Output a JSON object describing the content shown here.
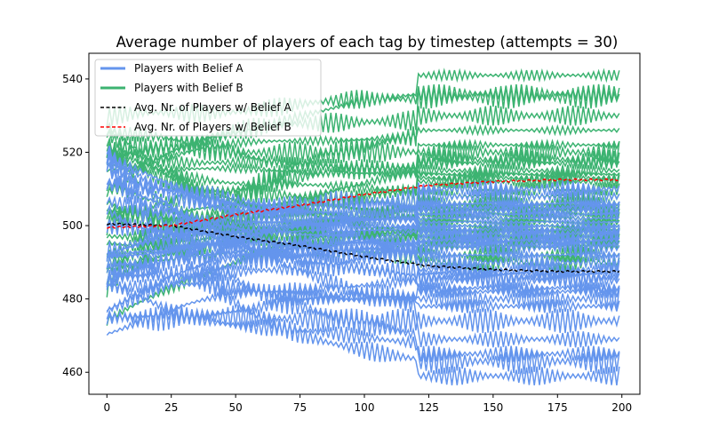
{
  "chart_data": {
    "type": "line",
    "title": "Average number of players of each tag by timestep (attempts = 30)",
    "xlabel": "",
    "ylabel": "",
    "xlim": [
      -7,
      207
    ],
    "ylim": [
      454,
      547
    ],
    "xticks": [
      0,
      25,
      50,
      75,
      100,
      125,
      150,
      175,
      200
    ],
    "yticks": [
      460,
      480,
      500,
      520,
      540
    ],
    "grid": false,
    "legend_placement": "top-left",
    "colors": {
      "belief_a": "#6495ed",
      "belief_b": "#3cb371",
      "avg_a": "#000000",
      "avg_b": "#ff0000"
    },
    "legend": [
      {
        "label": "Players with Belief A",
        "style": "solid",
        "color": "#6495ed"
      },
      {
        "label": "Players with Belief B",
        "style": "solid",
        "color": "#3cb371"
      },
      {
        "label": "Avg. Nr. of Players w/ Belief A",
        "style": "dashed",
        "color": "#000000"
      },
      {
        "label": "Avg. Nr. of Players w/ Belief B",
        "style": "dashed",
        "color": "#ff0000"
      }
    ],
    "attempts": 30,
    "series_a_final": [
      459,
      463,
      465,
      469,
      474,
      478,
      480,
      482,
      483,
      485,
      486,
      487,
      488,
      490,
      492,
      494,
      495,
      496,
      497,
      498,
      499,
      500,
      501,
      502,
      503,
      504,
      505,
      506,
      508,
      510
    ],
    "series_b_final": [
      541,
      536,
      535,
      530,
      526,
      522,
      520,
      518,
      517,
      515,
      514,
      513,
      512,
      510,
      508,
      506,
      505,
      504,
      503,
      502,
      501,
      500,
      499,
      498,
      497,
      496,
      495,
      494,
      492,
      490
    ],
    "avg_a": {
      "x": [
        0,
        25,
        50,
        75,
        100,
        125,
        150,
        175,
        200
      ],
      "y": [
        500.5,
        500,
        497,
        494.5,
        491.5,
        489,
        488,
        487.5,
        487.5
      ]
    },
    "avg_b": {
      "x": [
        0,
        25,
        50,
        75,
        100,
        125,
        150,
        175,
        200
      ],
      "y": [
        499.5,
        500,
        503,
        505.5,
        508.5,
        511,
        512,
        512.5,
        512.5
      ]
    }
  }
}
